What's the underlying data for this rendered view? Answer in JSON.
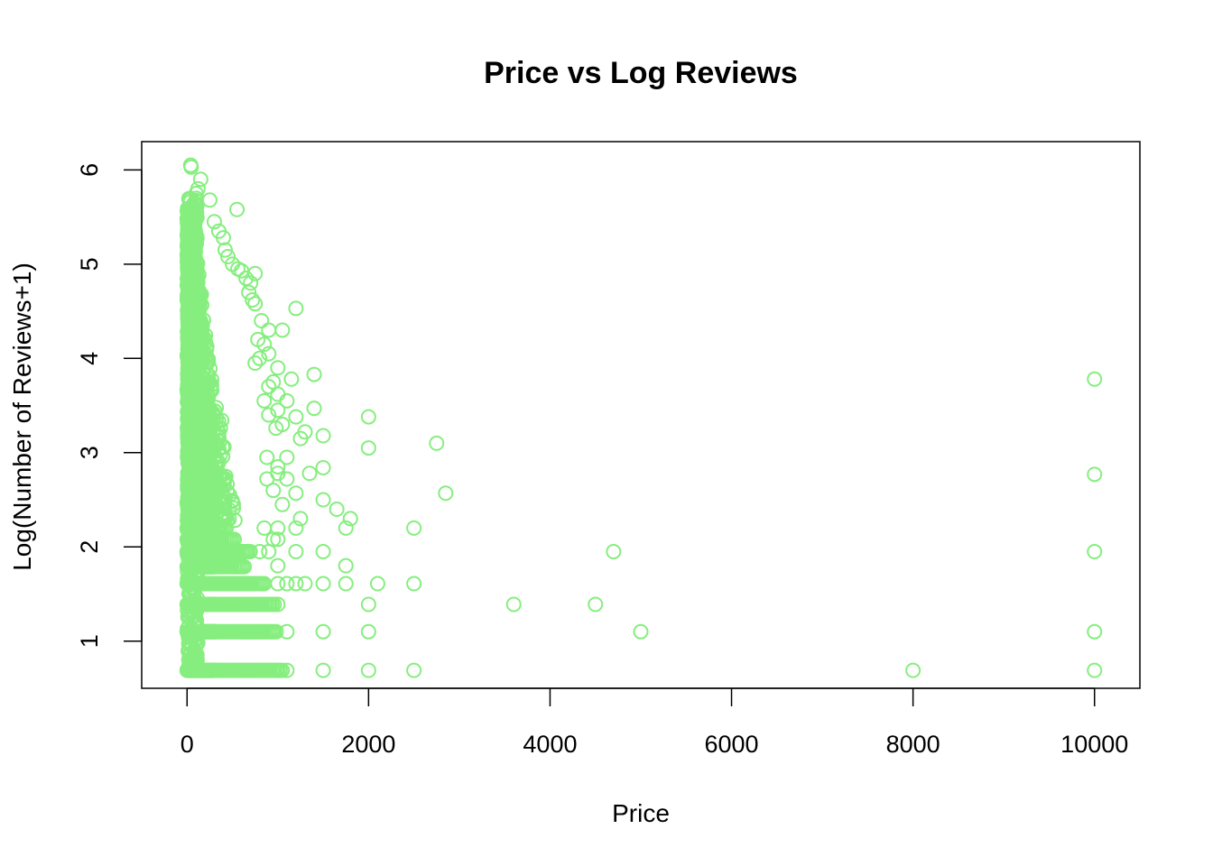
{
  "chart_data": {
    "type": "scatter",
    "title": "Price vs Log Reviews",
    "xlabel": "Price",
    "ylabel": "Log(Number of Reviews+1)",
    "xlim": [
      -500,
      10500
    ],
    "ylim": [
      0.5,
      6.3
    ],
    "x_ticks": [
      0,
      2000,
      4000,
      6000,
      8000,
      10000
    ],
    "y_ticks": [
      1,
      2,
      3,
      4,
      5,
      6
    ],
    "grid": false,
    "legend": "none",
    "marker": "open-circle",
    "point_color": "#86EE7F",
    "series": [
      {
        "points": [
          [
            40,
            6.05
          ],
          [
            45,
            6.03
          ],
          [
            150,
            5.9
          ],
          [
            120,
            5.8
          ],
          [
            100,
            5.75
          ],
          [
            250,
            5.68
          ],
          [
            550,
            5.58
          ],
          [
            300,
            5.45
          ],
          [
            350,
            5.35
          ],
          [
            400,
            5.28
          ],
          [
            420,
            5.15
          ],
          [
            450,
            5.08
          ],
          [
            500,
            5.0
          ],
          [
            560,
            4.95
          ],
          [
            600,
            4.93
          ],
          [
            650,
            4.85
          ],
          [
            750,
            4.9
          ],
          [
            700,
            4.8
          ],
          [
            680,
            4.7
          ],
          [
            720,
            4.62
          ],
          [
            750,
            4.58
          ],
          [
            820,
            4.4
          ],
          [
            900,
            4.3
          ],
          [
            1050,
            4.3
          ],
          [
            1200,
            4.53
          ],
          [
            780,
            4.2
          ],
          [
            850,
            4.15
          ],
          [
            900,
            4.05
          ],
          [
            800,
            4.0
          ],
          [
            750,
            3.95
          ],
          [
            1000,
            3.9
          ],
          [
            1150,
            3.78
          ],
          [
            1400,
            3.83
          ],
          [
            950,
            3.75
          ],
          [
            900,
            3.7
          ],
          [
            1000,
            3.62
          ],
          [
            850,
            3.55
          ],
          [
            1100,
            3.55
          ],
          [
            1400,
            3.47
          ],
          [
            1000,
            3.45
          ],
          [
            900,
            3.4
          ],
          [
            2000,
            3.38
          ],
          [
            1200,
            3.38
          ],
          [
            1050,
            3.3
          ],
          [
            980,
            3.26
          ],
          [
            1300,
            3.22
          ],
          [
            1250,
            3.15
          ],
          [
            1500,
            3.18
          ],
          [
            2750,
            3.1
          ],
          [
            2000,
            3.05
          ],
          [
            880,
            2.95
          ],
          [
            1100,
            2.95
          ],
          [
            1000,
            2.85
          ],
          [
            1500,
            2.84
          ],
          [
            1350,
            2.78
          ],
          [
            1000,
            2.78
          ],
          [
            880,
            2.72
          ],
          [
            1100,
            2.72
          ],
          [
            2850,
            2.57
          ],
          [
            1200,
            2.57
          ],
          [
            950,
            2.6
          ],
          [
            1500,
            2.5
          ],
          [
            1650,
            2.4
          ],
          [
            1050,
            2.45
          ],
          [
            1800,
            2.3
          ],
          [
            1250,
            2.3
          ],
          [
            850,
            2.2
          ],
          [
            1000,
            2.2
          ],
          [
            1200,
            2.2
          ],
          [
            1750,
            2.2
          ],
          [
            2500,
            2.2
          ],
          [
            950,
            2.08
          ],
          [
            1000,
            2.08
          ],
          [
            800,
            1.95
          ],
          [
            900,
            1.95
          ],
          [
            1200,
            1.95
          ],
          [
            1500,
            1.95
          ],
          [
            4700,
            1.95
          ],
          [
            1000,
            1.8
          ],
          [
            1750,
            1.8
          ],
          [
            1000,
            1.61
          ],
          [
            1100,
            1.61
          ],
          [
            1200,
            1.61
          ],
          [
            1300,
            1.61
          ],
          [
            1500,
            1.61
          ],
          [
            1750,
            1.61
          ],
          [
            2100,
            1.61
          ],
          [
            2500,
            1.61
          ],
          [
            900,
            1.39
          ],
          [
            1000,
            1.39
          ],
          [
            2000,
            1.39
          ],
          [
            3600,
            1.39
          ],
          [
            4500,
            1.39
          ],
          [
            1100,
            1.1
          ],
          [
            1500,
            1.1
          ],
          [
            2000,
            1.1
          ],
          [
            5000,
            1.1
          ],
          [
            1000,
            0.69
          ],
          [
            1100,
            0.69
          ],
          [
            1500,
            0.69
          ],
          [
            2000,
            0.69
          ],
          [
            2500,
            0.69
          ],
          [
            8000,
            0.69
          ],
          [
            10000,
            3.78
          ],
          [
            10000,
            2.77
          ],
          [
            10000,
            1.95
          ],
          [
            10000,
            1.1
          ],
          [
            10000,
            0.69
          ]
        ],
        "dense_cluster": {
          "x_range": [
            0,
            300
          ],
          "y_range": [
            0.69,
            5.7
          ],
          "note_levels": [
            0.69,
            1.1,
            1.39,
            1.61,
            1.79,
            1.95,
            2.08,
            2.2
          ]
        }
      }
    ]
  }
}
